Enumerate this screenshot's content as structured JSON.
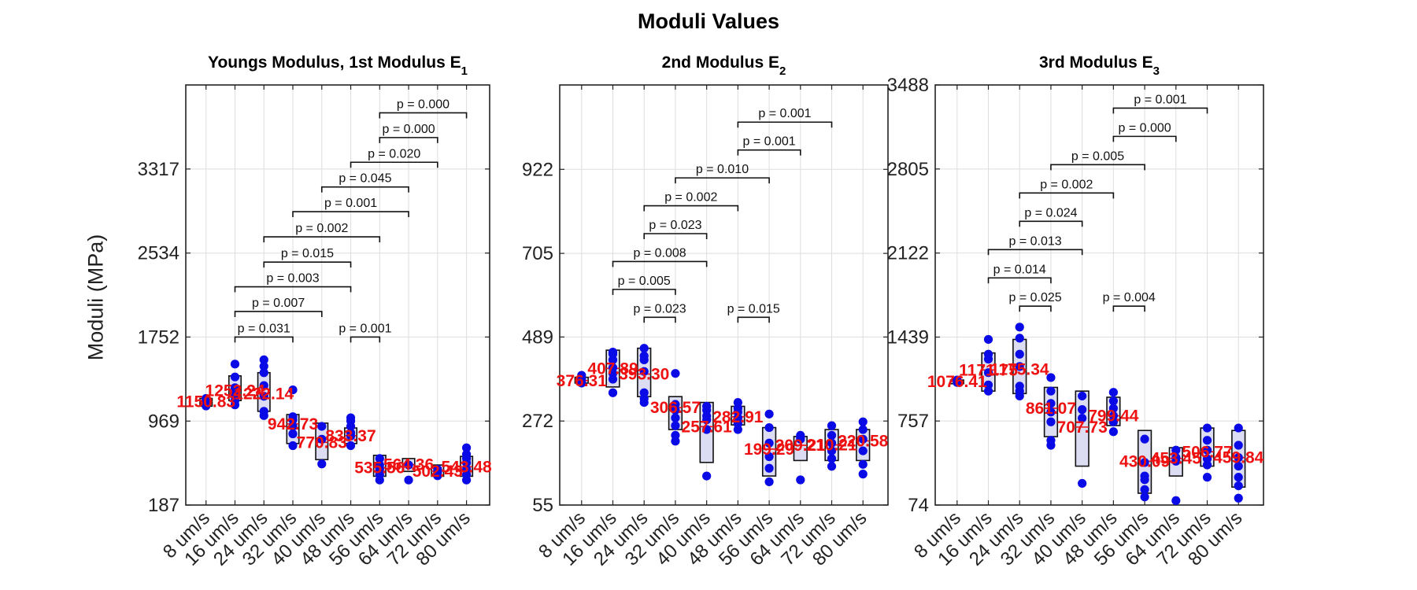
{
  "figure": {
    "title": "Moduli Values",
    "ylabel": "Moduli (MPa)"
  },
  "chart_data": [
    {
      "type": "box",
      "title": "Youngs Modulus, 1st Modulus E",
      "title_sub": "1",
      "ylabel": "Moduli (MPa)",
      "categories": [
        "8 um/s",
        "16 um/s",
        "24 um/s",
        "32 um/s",
        "40 um/s",
        "48 um/s",
        "56 um/s",
        "64 um/s",
        "72 um/s",
        "80 um/s"
      ],
      "yticks": [
        187,
        969,
        1752,
        2534,
        3317
      ],
      "ylim": [
        187,
        4100
      ],
      "grid": true,
      "medians": [
        1150.83,
        1252.24,
        1222.14,
        942.73,
        770.83,
        833.37,
        535.56,
        564.36,
        502.43,
        543.48
      ],
      "median_labels": [
        "1150.83",
        "1252.24",
        "1222.14",
        "942.73",
        "770.83",
        "833.37",
        "535.56",
        "564.36",
        "502.43",
        "543.48"
      ],
      "boxes": [
        {
          "q1": 1108,
          "q3": 1180
        },
        {
          "q1": 1160,
          "q3": 1390
        },
        {
          "q1": 1060,
          "q3": 1420
        },
        {
          "q1": 760,
          "q3": 1030
        },
        {
          "q1": 610,
          "q3": 950
        },
        {
          "q1": 760,
          "q3": 905
        },
        {
          "q1": 455,
          "q3": 650
        },
        {
          "q1": 500,
          "q3": 620
        },
        {
          "q1": 455,
          "q3": 560
        },
        {
          "q1": 455,
          "q3": 640
        }
      ],
      "points": [
        [
          1110,
          1160,
          1180
        ],
        [
          1120,
          1160,
          1200,
          1240,
          1280,
          1380,
          1500
        ],
        [
          1020,
          1060,
          1200,
          1300,
          1420,
          1480,
          1540
        ],
        [
          740,
          850,
          920,
          980,
          1010,
          1260
        ],
        [
          570,
          800,
          920
        ],
        [
          740,
          830,
          860,
          920,
          970,
          1000
        ],
        [
          420,
          470,
          520,
          560,
          620
        ],
        [
          420,
          560
        ],
        [
          460,
          490,
          520
        ],
        [
          420,
          470,
          520,
          580,
          620,
          660,
          720
        ]
      ],
      "significance": [
        {
          "from": 1,
          "to": 3,
          "p": "p = 0.031",
          "level": 1752
        },
        {
          "from": 5,
          "to": 6,
          "p": "p = 0.001",
          "level": 1752
        },
        {
          "from": 1,
          "to": 4,
          "p": "p = 0.007",
          "level": 1990
        },
        {
          "from": 1,
          "to": 5,
          "p": "p = 0.003",
          "level": 2220
        },
        {
          "from": 2,
          "to": 5,
          "p": "p = 0.015",
          "level": 2450
        },
        {
          "from": 2,
          "to": 6,
          "p": "p = 0.002",
          "level": 2685
        },
        {
          "from": 3,
          "to": 7,
          "p": "p = 0.001",
          "level": 2920
        },
        {
          "from": 4,
          "to": 7,
          "p": "p = 0.045",
          "level": 3150
        },
        {
          "from": 5,
          "to": 8,
          "p": "p = 0.020",
          "level": 3380
        },
        {
          "from": 6,
          "to": 8,
          "p": "p = 0.000",
          "level": 3610
        },
        {
          "from": 6,
          "to": 9,
          "p": "p = 0.000",
          "level": 3840
        }
      ]
    },
    {
      "type": "box",
      "title": "2nd Modulus E",
      "title_sub": "2",
      "categories": [
        "8 um/s",
        "16 um/s",
        "24 um/s",
        "32 um/s",
        "40 um/s",
        "48 um/s",
        "56 um/s",
        "64 um/s",
        "72 um/s",
        "80 um/s"
      ],
      "yticks": [
        55,
        272,
        489,
        705,
        922
      ],
      "ylim": [
        55,
        1140
      ],
      "grid": true,
      "medians": [
        376.31,
        407.89,
        393.3,
        306.57,
        257.61,
        282.91,
        199.29,
        209.21,
        210.21,
        220.58
      ],
      "median_labels": [
        "376.31",
        "407.89",
        "393.30",
        "306.57",
        "257.61",
        "282.91",
        "199.29",
        "209.21",
        "210.21",
        "220.58"
      ],
      "boxes": [
        {
          "q1": 370,
          "q3": 385
        },
        {
          "q1": 360,
          "q3": 455
        },
        {
          "q1": 335,
          "q3": 460
        },
        {
          "q1": 250,
          "q3": 335
        },
        {
          "q1": 165,
          "q3": 320
        },
        {
          "q1": 262,
          "q3": 310
        },
        {
          "q1": 130,
          "q3": 255
        },
        {
          "q1": 170,
          "q3": 232
        },
        {
          "q1": 170,
          "q3": 250
        },
        {
          "q1": 170,
          "q3": 250
        }
      ],
      "points": [
        [
          370,
          380,
          390
        ],
        [
          345,
          380,
          395,
          410,
          430,
          445,
          450
        ],
        [
          320,
          330,
          345,
          400,
          430,
          440,
          460
        ],
        [
          220,
          235,
          260,
          280,
          300,
          315,
          395
        ],
        [
          130,
          250,
          275,
          285,
          300,
          310
        ],
        [
          250,
          265,
          280,
          295,
          305,
          320
        ],
        [
          115,
          150,
          180,
          215,
          255,
          290
        ],
        [
          120,
          225,
          230,
          235
        ],
        [
          155,
          175,
          195,
          215,
          235,
          260
        ],
        [
          135,
          160,
          195,
          225,
          250,
          270
        ]
      ],
      "significance": [
        {
          "from": 2,
          "to": 3,
          "p": "p = 0.023",
          "level": 540
        },
        {
          "from": 5,
          "to": 6,
          "p": "p = 0.015",
          "level": 540
        },
        {
          "from": 1,
          "to": 3,
          "p": "p = 0.005",
          "level": 612
        },
        {
          "from": 1,
          "to": 4,
          "p": "p = 0.008",
          "level": 684
        },
        {
          "from": 2,
          "to": 4,
          "p": "p = 0.023",
          "level": 756
        },
        {
          "from": 2,
          "to": 5,
          "p": "p = 0.002",
          "level": 828
        },
        {
          "from": 3,
          "to": 6,
          "p": "p = 0.010",
          "level": 900
        },
        {
          "from": 5,
          "to": 7,
          "p": "p = 0.001",
          "level": 972
        },
        {
          "from": 5,
          "to": 8,
          "p": "p = 0.001",
          "level": 1044
        }
      ]
    },
    {
      "type": "box",
      "title": "3rd Modulus E",
      "title_sub": "3",
      "categories": [
        "8 um/s",
        "16 um/s",
        "24 um/s",
        "32 um/s",
        "40 um/s",
        "48 um/s",
        "56 um/s",
        "64 um/s",
        "72 um/s",
        "80 um/s"
      ],
      "yticks": [
        74,
        757,
        1439,
        2122,
        2805,
        3488
      ],
      "ylim": [
        74,
        3488
      ],
      "grid": true,
      "medians": [
        1076.41,
        1171.75,
        1175.34,
        861.07,
        707.73,
        799.44,
        430.09,
        453.45,
        506.77,
        459.84
      ],
      "median_labels": [
        "1076.41",
        "1171.75",
        "1175.34",
        "861.07",
        "707.73",
        "799.44",
        "430.09",
        "453.45",
        "506.77",
        "459.84"
      ],
      "boxes": [
        {
          "q1": 1060,
          "q3": 1090
        },
        {
          "q1": 1000,
          "q3": 1310
        },
        {
          "q1": 980,
          "q3": 1420
        },
        {
          "q1": 630,
          "q3": 1030
        },
        {
          "q1": 390,
          "q3": 1000
        },
        {
          "q1": 720,
          "q3": 950
        },
        {
          "q1": 170,
          "q3": 680
        },
        {
          "q1": 310,
          "q3": 540
        },
        {
          "q1": 390,
          "q3": 700
        },
        {
          "q1": 220,
          "q3": 680
        }
      ],
      "points": [
        [
          1070,
          1090
        ],
        [
          1000,
          1050,
          1150,
          1260,
          1300,
          1420
        ],
        [
          960,
          1000,
          1040,
          1200,
          1300,
          1430,
          1520
        ],
        [
          560,
          600,
          750,
          830,
          900,
          1000,
          1110
        ],
        [
          250,
          780,
          850,
          960
        ],
        [
          670,
          750,
          800,
          860,
          920,
          990
        ],
        [
          140,
          200,
          280,
          310,
          420,
          610
        ],
        [
          110,
          430,
          460,
          520
        ],
        [
          300,
          400,
          450,
          520,
          600,
          700
        ],
        [
          130,
          230,
          300,
          390,
          460,
          560,
          700
        ]
      ],
      "significance": [
        {
          "from": 2,
          "to": 3,
          "p": "p = 0.025",
          "level": 1690
        },
        {
          "from": 5,
          "to": 6,
          "p": "p = 0.004",
          "level": 1690
        },
        {
          "from": 1,
          "to": 3,
          "p": "p = 0.014",
          "level": 1920
        },
        {
          "from": 1,
          "to": 4,
          "p": "p = 0.013",
          "level": 2150
        },
        {
          "from": 2,
          "to": 4,
          "p": "p = 0.024",
          "level": 2380
        },
        {
          "from": 2,
          "to": 5,
          "p": "p = 0.002",
          "level": 2610
        },
        {
          "from": 3,
          "to": 6,
          "p": "p = 0.005",
          "level": 2840
        },
        {
          "from": 5,
          "to": 7,
          "p": "p = 0.000",
          "level": 3070
        },
        {
          "from": 5,
          "to": 8,
          "p": "p = 0.001",
          "level": 3300
        }
      ]
    }
  ],
  "colors": {
    "points": "#0a0ae6",
    "median_text": "#ee1111",
    "median_line": "#ee1111",
    "box_fill": "#dcdcf2",
    "box_stroke": "#111111",
    "grid": "#dedede",
    "axis": "#222222",
    "bracket": "#111111"
  }
}
